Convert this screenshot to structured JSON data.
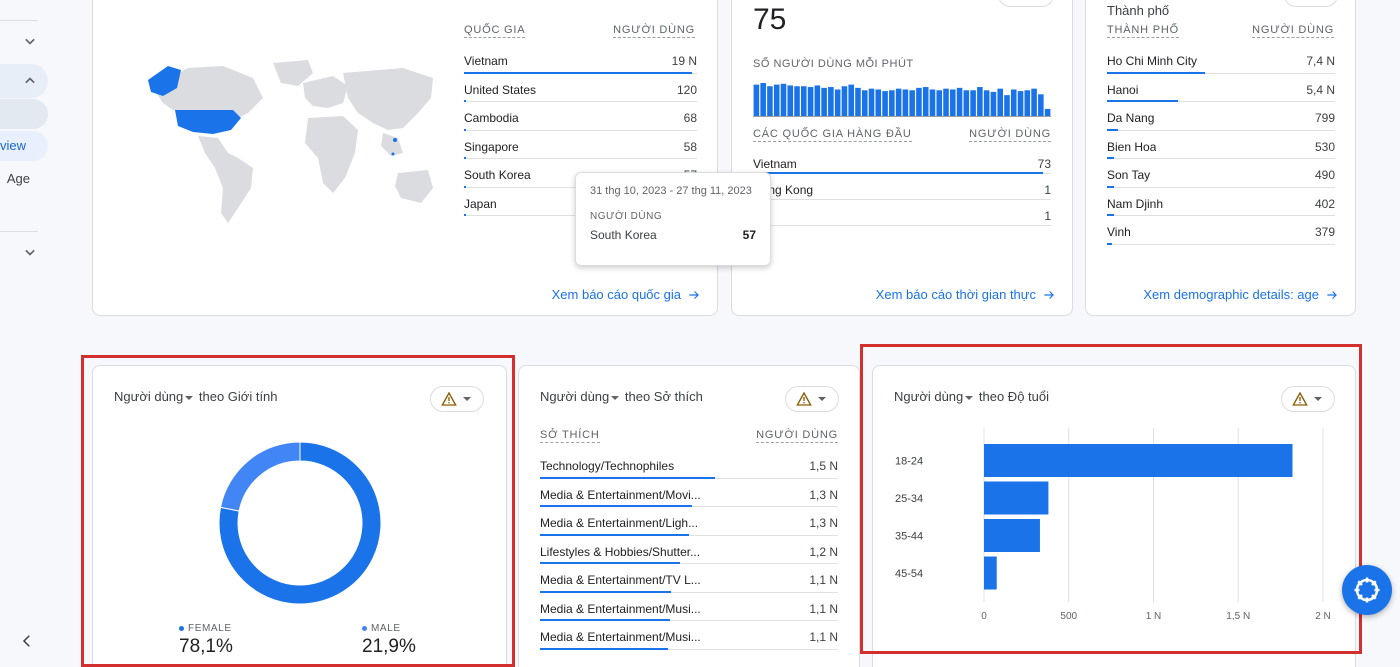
{
  "sidebar": {
    "active_item": "view",
    "text_item": "Age"
  },
  "country_card": {
    "col_country": "QUỐC GIA",
    "col_users": "NGƯỜI DÙNG",
    "rows": [
      {
        "label": "Vietnam",
        "value": "19 N",
        "share": 1.0
      },
      {
        "label": "United States",
        "value": "120",
        "share": 0.01
      },
      {
        "label": "Cambodia",
        "value": "68",
        "share": 0.006
      },
      {
        "label": "Singapore",
        "value": "58",
        "share": 0.005
      },
      {
        "label": "South Korea",
        "value": "57",
        "share": 0.005
      },
      {
        "label": "Japan",
        "value": "",
        "share": 0.004
      }
    ],
    "link": "Xem báo cáo quốc gia"
  },
  "tooltip": {
    "date_range": "31 thg 10, 2023 - 27 thg 11, 2023",
    "metric": "NGƯỜI DÙNG",
    "country": "South Korea",
    "value": "57"
  },
  "realtime_card": {
    "big_number": "75",
    "per_minute_label": "SỐ NGƯỜI DÙNG MỖI PHÚT",
    "col_country": "CÁC QUỐC GIA HÀNG ĐẦU",
    "col_users": "NGƯỜI DÙNG",
    "rows": [
      {
        "label": "Vietnam",
        "value": "73",
        "share": 1.0
      },
      {
        "label": "Hong Kong",
        "value": "1",
        "share": 0.0
      },
      {
        "label": "",
        "value": "1",
        "share": 0.0
      }
    ],
    "link": "Xem báo cáo thời gian thực"
  },
  "city_card": {
    "heading": "Thành phố",
    "col_city": "THÀNH PHỐ",
    "col_users": "NGƯỜI DÙNG",
    "rows": [
      {
        "label": "Ho Chi Minh City",
        "value": "7,4 N",
        "share": 0.43
      },
      {
        "label": "Hanoi",
        "value": "5,4 N",
        "share": 0.31
      },
      {
        "label": "Da Nang",
        "value": "799",
        "share": 0.05
      },
      {
        "label": "Bien Hoa",
        "value": "530",
        "share": 0.03
      },
      {
        "label": "Son Tay",
        "value": "490",
        "share": 0.03
      },
      {
        "label": "Nam Djinh",
        "value": "402",
        "share": 0.03
      },
      {
        "label": "Vinh",
        "value": "379",
        "share": 0.02
      }
    ],
    "link": "Xem demographic details: age"
  },
  "gender_card": {
    "title_metric": "Người dùng",
    "title_rest": "theo Giới tính",
    "legend": [
      {
        "label": "FEMALE",
        "value": "78,1%",
        "color": "#1a73e8"
      },
      {
        "label": "MALE",
        "value": "21,9%",
        "color": "#4285f4"
      }
    ]
  },
  "interest_card": {
    "title_metric": "Người dùng",
    "title_rest": "theo Sở thích",
    "col_interest": "SỞ THÍCH",
    "col_users": "NGƯỜI DÙNG",
    "rows": [
      {
        "label": "Technology/Technophiles",
        "value": "1,5 N",
        "share": 1.0
      },
      {
        "label": "Media & Entertainment/Movi...",
        "value": "1,3 N",
        "share": 0.87
      },
      {
        "label": "Media & Entertainment/Ligh...",
        "value": "1,3 N",
        "share": 0.85
      },
      {
        "label": "Lifestyles & Hobbies/Shutter...",
        "value": "1,2 N",
        "share": 0.8
      },
      {
        "label": "Media & Entertainment/TV L...",
        "value": "1,1 N",
        "share": 0.75
      },
      {
        "label": "Media & Entertainment/Musi...",
        "value": "1,1 N",
        "share": 0.74
      },
      {
        "label": "Media & Entertainment/Musi...",
        "value": "1,1 N",
        "share": 0.73
      }
    ]
  },
  "age_card": {
    "title_metric": "Người dùng",
    "title_rest": "theo Độ tuổi"
  },
  "chart_data": [
    {
      "type": "bar",
      "orientation": "horizontal",
      "categories": [
        "18-24",
        "25-34",
        "35-44",
        "45-54"
      ],
      "values": [
        1820,
        380,
        330,
        75
      ],
      "xlim": [
        0,
        2000
      ],
      "ticks": [
        "0",
        "500",
        "1 N",
        "1,5 N",
        "2 N"
      ],
      "grid": true,
      "color": "#1a73e8"
    },
    {
      "type": "pie",
      "categories": [
        "FEMALE",
        "MALE"
      ],
      "values": [
        78.1,
        21.9
      ],
      "colors": [
        "#1a73e8",
        "#4285f4"
      ]
    },
    {
      "type": "bar",
      "values": [
        40,
        42,
        38,
        40,
        41,
        39,
        38,
        38,
        37,
        39,
        36,
        37,
        34,
        38,
        40,
        36,
        33,
        35,
        34,
        32,
        33,
        35,
        34,
        33,
        36,
        37,
        34,
        33,
        35,
        34,
        36,
        33,
        33,
        37,
        33,
        31,
        35,
        27,
        34,
        32,
        33,
        35,
        28,
        10
      ],
      "color": "#1a73e8"
    }
  ]
}
